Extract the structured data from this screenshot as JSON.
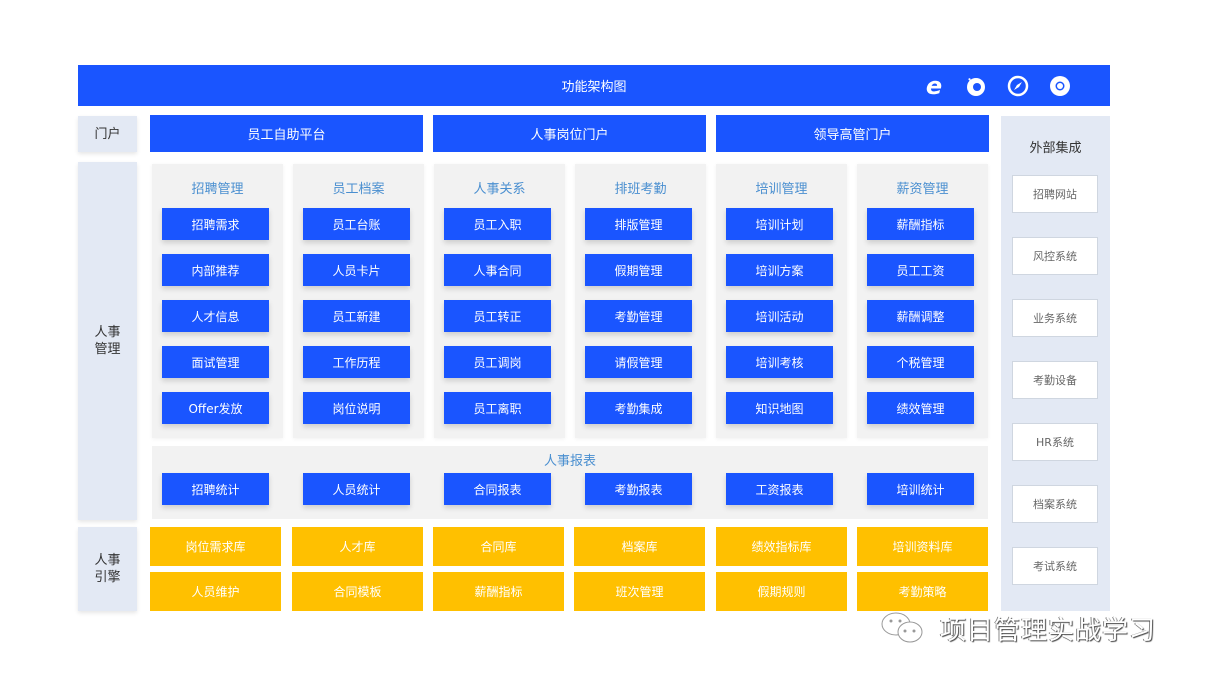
{
  "header": {
    "title": "功能架构图",
    "icons": [
      "ie-icon",
      "firefox-icon",
      "safari-icon",
      "chrome-icon"
    ]
  },
  "side_labels": {
    "portal": "门户",
    "hr_management": "人事\n管理",
    "hr_engine": "人事\n引擎"
  },
  "portals": [
    "员工自助平台",
    "人事岗位门户",
    "领导高管门户"
  ],
  "modules": [
    {
      "title": "招聘管理",
      "items": [
        "招聘需求",
        "内部推荐",
        "人才信息",
        "面试管理",
        "Offer发放"
      ]
    },
    {
      "title": "员工档案",
      "items": [
        "员工台账",
        "人员卡片",
        "员工新建",
        "工作历程",
        "岗位说明"
      ]
    },
    {
      "title": "人事关系",
      "items": [
        "员工入职",
        "人事合同",
        "员工转正",
        "员工调岗",
        "员工离职"
      ]
    },
    {
      "title": "排班考勤",
      "items": [
        "排版管理",
        "假期管理",
        "考勤管理",
        "请假管理",
        "考勤集成"
      ]
    },
    {
      "title": "培训管理",
      "items": [
        "培训计划",
        "培训方案",
        "培训活动",
        "培训考核",
        "知识地图"
      ]
    },
    {
      "title": "薪资管理",
      "items": [
        "薪酬指标",
        "员工工资",
        "薪酬调整",
        "个税管理",
        "绩效管理"
      ]
    }
  ],
  "reports": {
    "title": "人事报表",
    "items": [
      "招聘统计",
      "人员统计",
      "合同报表",
      "考勤报表",
      "工资报表",
      "培训统计"
    ]
  },
  "engine": {
    "row1": [
      "岗位需求库",
      "人才库",
      "合同库",
      "档案库",
      "绩效指标库",
      "培训资料库"
    ],
    "row2": [
      "人员维护",
      "合同模板",
      "薪酬指标",
      "班次管理",
      "假期规则",
      "考勤策略"
    ]
  },
  "external": {
    "title": "外部集成",
    "items": [
      "招聘网站",
      "风控系统",
      "业务系统",
      "考勤设备",
      "HR系统",
      "档案系统",
      "考试系统"
    ]
  },
  "watermark": "项目管理实战学习",
  "colors": {
    "primary": "#1a55ff",
    "engine": "#ffc000",
    "side": "#e3e9f4",
    "module_title": "#4a8fd0"
  }
}
